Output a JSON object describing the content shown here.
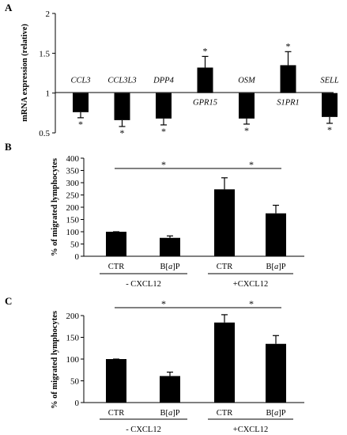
{
  "chart_data": [
    {
      "panel": "A",
      "type": "bar",
      "ylabel": "mRNA expression (relative)",
      "yticks": [
        "0.5",
        "1",
        "1.5",
        "2"
      ],
      "ylim": [
        0.5,
        2
      ],
      "baseline": 1,
      "categories": [
        "CCL3",
        "CCL3L3",
        "DPP4",
        "GPR15",
        "OSM",
        "S1PR1",
        "SELL"
      ],
      "values": [
        0.76,
        0.66,
        0.68,
        1.32,
        0.68,
        1.35,
        0.7
      ],
      "errors": [
        0.07,
        0.08,
        0.08,
        0.14,
        0.07,
        0.17,
        0.08
      ],
      "significance": [
        "*",
        "*",
        "*",
        "*",
        "*",
        "*",
        "*"
      ]
    },
    {
      "panel": "B",
      "type": "bar",
      "ylabel": "% of migrated lymphocytes",
      "yticks": [
        "0",
        "50",
        "100",
        "150",
        "200",
        "250",
        "300",
        "350",
        "400"
      ],
      "ylim": [
        0,
        400
      ],
      "categories": [
        "CTR",
        "B[a]P",
        "CTR",
        "B[a]P"
      ],
      "values": [
        100,
        75,
        273,
        175
      ],
      "errors": [
        0,
        8,
        47,
        33
      ],
      "groups": [
        "- CXCL12",
        "+CXCL12"
      ],
      "significance": [
        "*",
        "*"
      ]
    },
    {
      "panel": "C",
      "type": "bar",
      "ylabel": "% of migrated lymphocytes",
      "yticks": [
        "0",
        "50",
        "100",
        "150",
        "200"
      ],
      "ylim": [
        0,
        200
      ],
      "categories": [
        "CTR",
        "B[a]P",
        "CTR",
        "B[a]P"
      ],
      "values": [
        100,
        61,
        184,
        135
      ],
      "errors": [
        0,
        9,
        18,
        19
      ],
      "groups": [
        "- CXCL12",
        "+CXCL12"
      ],
      "significance": [
        "*",
        "*"
      ]
    }
  ]
}
